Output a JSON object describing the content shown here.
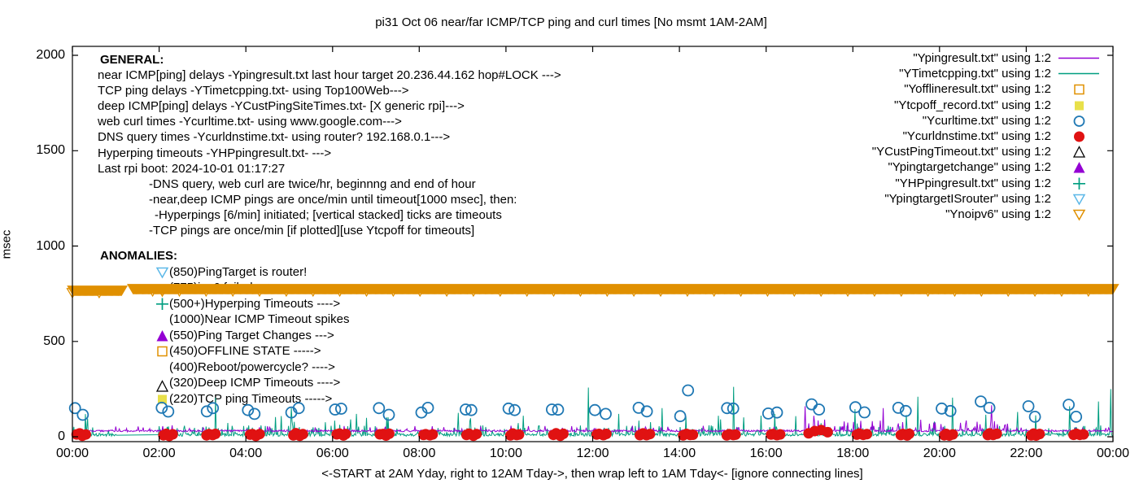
{
  "title": "pi31 Oct 06  near/far ICMP/TCP ping and curl times [No msmt 1AM-2AM]",
  "footer": "<-START at 2AM Yday, right to 12AM Tday->, then wrap left to 1AM Tday<- [ignore connecting lines]",
  "ylabel": "msec",
  "general": {
    "heading": "GENERAL:",
    "lines": [
      {
        "text": "near ICMP[ping] delays -Ypingresult.txt last hour target 20.236.44.162 hop#LOCK --->",
        "indent": 0
      },
      {
        "text": "TCP ping delays -YTimetcpping.txt- using Top100Web--->",
        "indent": 0
      },
      {
        "text": "deep ICMP[ping] delays -YCustPingSiteTimes.txt- [X generic rpi]--->",
        "indent": 0
      },
      {
        "text": "web curl times -Ycurltime.txt- using www.google.com--->",
        "indent": 0
      },
      {
        "text": "DNS query times -Ycurldnstime.txt- using router? 192.168.0.1--->",
        "indent": 0
      },
      {
        "text": "Hyperping timeouts -YHPpingresult.txt- --->",
        "indent": 0
      },
      {
        "text": "Last rpi boot: 2024-10-01 01:17:27",
        "indent": 0
      },
      {
        "text": "-DNS query, web curl are twice/hr, beginnng and end of hour",
        "indent": 1
      },
      {
        "text": "-near,deep ICMP pings are once/min until timeout[1000 msec], then:",
        "indent": 1
      },
      {
        "text": "-Hyperpings [6/min] initiated; [vertical stacked] ticks are timeouts",
        "indent": 2
      },
      {
        "text": "-TCP pings are once/min [if plotted][use Ytcpoff for timeouts]",
        "indent": 1
      }
    ]
  },
  "anomalies": {
    "heading": "ANOMALIES:",
    "items": [
      {
        "marker": "triangle-down-open",
        "color": "#5cb8e8",
        "text": "(850)PingTarget is router!",
        "dy": 0
      },
      {
        "marker": "triangle-down-open",
        "color": "#e09000",
        "text": "(775)ipv6 failed --->",
        "dy": 4
      },
      {
        "marker": "plus",
        "color": "#009e80",
        "text": "(500+)Hyperping Timeouts ---->",
        "dy": 0
      },
      {
        "marker": null,
        "color": "",
        "text": "(1000)Near ICMP Timeout spikes",
        "dy": 0
      },
      {
        "marker": "triangle-filled",
        "color": "#9400d3",
        "text": "(550)Ping Target Changes --->",
        "dy": 0
      },
      {
        "marker": "square-open",
        "color": "#e09000",
        "text": "(450)OFFLINE STATE ----->",
        "dy": 0
      },
      {
        "marker": null,
        "color": "",
        "text": "(400)Reboot/powercycle? ---->",
        "dy": 0
      },
      {
        "marker": "triangle-open",
        "color": "#000000",
        "text": "(320)Deep ICMP Timeouts ---->",
        "dy": 4
      },
      {
        "marker": "square-filled",
        "color": "#e8e04a",
        "text": "(220)TCP ping Timeouts ----->",
        "dy": 0
      }
    ]
  },
  "legend": [
    {
      "label": "\"Ypingresult.txt\" using 1:2",
      "sample": "line",
      "color": "#9400d3"
    },
    {
      "label": "\"YTimetcpping.txt\" using 1:2",
      "sample": "line",
      "color": "#009e80"
    },
    {
      "label": "\"Yofflineresult.txt\" using 1:2",
      "sample": "square-open",
      "color": "#e09000"
    },
    {
      "label": "\"Ytcpoff_record.txt\" using 1:2",
      "sample": "square-filled",
      "color": "#e8e04a"
    },
    {
      "label": "\"Ycurltime.txt\" using 1:2",
      "sample": "circle-open",
      "color": "#1f78b4"
    },
    {
      "label": "\"Ycurldnstime.txt\" using 1:2",
      "sample": "circle-filled",
      "color": "#e01212"
    },
    {
      "label": "\"YCustPingTimeout.txt\" using 1:2",
      "sample": "triangle-open",
      "color": "#000000"
    },
    {
      "label": "\"Ypingtargetchange\" using 1:2",
      "sample": "triangle-filled",
      "color": "#9400d3"
    },
    {
      "label": "\"YHPpingresult.txt\" using 1:2",
      "sample": "plus",
      "color": "#009e80"
    },
    {
      "label": "\"YpingtargetISrouter\" using 1:2",
      "sample": "triangle-down-open",
      "color": "#5cb8e8"
    },
    {
      "label": "\"Ynoipv6\" using 1:2",
      "sample": "triangle-down-open",
      "color": "#e09000"
    }
  ],
  "chart_data": {
    "type": "line",
    "x_axis": {
      "range_hours": [
        0,
        24
      ],
      "ticks": [
        "00:00",
        "02:00",
        "04:00",
        "06:00",
        "08:00",
        "10:00",
        "12:00",
        "14:00",
        "16:00",
        "18:00",
        "20:00",
        "22:00",
        "00:00"
      ]
    },
    "y_axis": {
      "label": "msec",
      "range": [
        0,
        2000
      ],
      "ticks": [
        0,
        500,
        1000,
        1500,
        2000
      ]
    },
    "notes": "x is time of day over 24h; no measurements 1AM-2AM (gap in data)",
    "series": [
      {
        "name": "YTimetcpping.txt",
        "render": "noise-line",
        "color": "#009e80",
        "noise": {
          "min": 3,
          "span": 15,
          "p1": 0.18,
          "a1": 20,
          "s1": 40,
          "p2": 0.03,
          "a2": 60,
          "s2": 60
        },
        "gap": [
          1.0,
          2.0
        ],
        "gap_join": [
          [
            1.0,
            12
          ],
          [
            2.0,
            55
          ]
        ],
        "spikes": [
          [
            0.35,
            95
          ],
          [
            3.3,
            205
          ],
          [
            5.05,
            150
          ],
          [
            6.55,
            120
          ],
          [
            8.9,
            125
          ],
          [
            10.4,
            110
          ],
          [
            11.9,
            258
          ],
          [
            12.6,
            120
          ],
          [
            13.6,
            150
          ],
          [
            14.9,
            110
          ],
          [
            15.25,
            262
          ],
          [
            16.2,
            120
          ],
          [
            18.05,
            145
          ],
          [
            19.5,
            210
          ],
          [
            20.3,
            205
          ],
          [
            21.8,
            130
          ],
          [
            23.0,
            160
          ],
          [
            23.66,
            185
          ],
          [
            23.95,
            250
          ]
        ]
      },
      {
        "name": "Ypingresult.txt",
        "render": "flat-noise-line",
        "color": "#9400d3",
        "base": 28,
        "jitter": 5,
        "dense_region": [
          16.8,
          21.6
        ],
        "spikes": [
          [
            2.3,
            60
          ],
          [
            4.5,
            55
          ],
          [
            8.3,
            55
          ],
          [
            16.9,
            160
          ],
          [
            17.1,
            110
          ],
          [
            17.35,
            90
          ],
          [
            18.7,
            150
          ],
          [
            19.9,
            75
          ],
          [
            20.6,
            65
          ],
          [
            21.2,
            165
          ],
          [
            21.5,
            60
          ],
          [
            23.3,
            45
          ]
        ]
      },
      {
        "name": "Ynoipv6",
        "render": "triangle-band",
        "color": "#e09000",
        "y_msec": 775,
        "gap_hours": [
          1.145,
          1.39
        ],
        "step_minutes": 1
      },
      {
        "name": "Ycurltime.txt",
        "render": "circles-open",
        "color": "#1f78b4",
        "points": [
          [
            0.06,
            150
          ],
          [
            0.24,
            115
          ],
          [
            2.06,
            152
          ],
          [
            2.21,
            132
          ],
          [
            3.1,
            133
          ],
          [
            3.24,
            150
          ],
          [
            4.05,
            140
          ],
          [
            4.2,
            120
          ],
          [
            5.05,
            127
          ],
          [
            5.22,
            150
          ],
          [
            6.06,
            143
          ],
          [
            6.2,
            147
          ],
          [
            7.07,
            150
          ],
          [
            7.3,
            115
          ],
          [
            8.05,
            127
          ],
          [
            8.2,
            152
          ],
          [
            9.07,
            143
          ],
          [
            9.2,
            140
          ],
          [
            10.06,
            148
          ],
          [
            10.2,
            140
          ],
          [
            11.06,
            143
          ],
          [
            11.2,
            142
          ],
          [
            12.05,
            140
          ],
          [
            12.3,
            120
          ],
          [
            13.06,
            152
          ],
          [
            13.25,
            133
          ],
          [
            14.02,
            108
          ],
          [
            14.2,
            243
          ],
          [
            15.1,
            150
          ],
          [
            15.24,
            148
          ],
          [
            16.05,
            122
          ],
          [
            16.25,
            127
          ],
          [
            17.05,
            170
          ],
          [
            17.22,
            143
          ],
          [
            18.06,
            155
          ],
          [
            18.27,
            128
          ],
          [
            19.05,
            152
          ],
          [
            19.22,
            135
          ],
          [
            20.05,
            148
          ],
          [
            20.25,
            135
          ],
          [
            20.95,
            185
          ],
          [
            21.15,
            152
          ],
          [
            22.05,
            160
          ],
          [
            22.2,
            105
          ],
          [
            22.98,
            168
          ],
          [
            23.15,
            105
          ]
        ]
      },
      {
        "name": "Ycurldnstime.txt",
        "render": "dot-clusters",
        "color": "#e01212",
        "cluster_hours": [
          0,
          2,
          3,
          4,
          5,
          6,
          7,
          8,
          9,
          10,
          11,
          12,
          13,
          14,
          15,
          16,
          18,
          19,
          20,
          21,
          22,
          23
        ],
        "offsets": [
          0.1,
          0.16,
          0.24,
          0.31
        ],
        "values_msec": [
          10,
          16,
          7,
          13
        ],
        "special_points": [
          [
            16.98,
            18
          ],
          [
            17.12,
            30
          ],
          [
            17.27,
            35
          ],
          [
            17.42,
            24
          ]
        ]
      },
      {
        "name": "Yofflineresult.txt",
        "render": "none-visible"
      },
      {
        "name": "Ytcpoff_record.txt",
        "render": "none-visible"
      },
      {
        "name": "YCustPingTimeout.txt",
        "render": "none-visible"
      },
      {
        "name": "Ypingtargetchange",
        "render": "none-visible"
      },
      {
        "name": "YHPpingresult.txt",
        "render": "none-visible"
      },
      {
        "name": "YpingtargetISrouter",
        "render": "none-visible"
      }
    ]
  }
}
